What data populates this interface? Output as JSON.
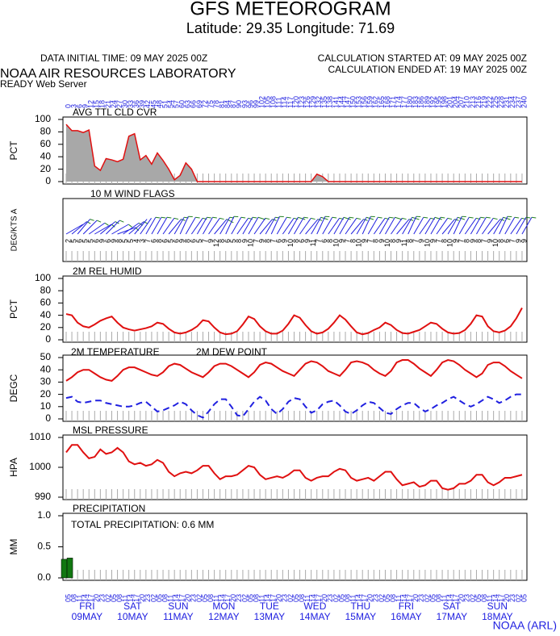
{
  "header": {
    "title": "GFS METEOROGRAM",
    "subtitle": "Latitude: 29.35 Longitude:  71.69",
    "data_initial": "DATA INITIAL TIME: 09 MAY 2025 00Z",
    "calc_started": "CALCULATION STARTED AT: 09 MAY 2025 00Z",
    "calc_ended": "CALCULATION ENDED AT: 19 MAY 2025 00Z",
    "org": "NOAA AIR RESOURCES LABORATORY",
    "server": "READY Web Server"
  },
  "footer": "NOAA (ARL)",
  "time": {
    "hours": [
      0,
      3,
      6,
      9,
      12,
      15,
      18,
      21,
      24,
      27,
      30,
      33,
      36,
      39,
      42,
      45,
      48,
      51,
      54,
      57,
      60,
      63,
      66,
      69,
      72,
      75,
      78,
      81,
      84,
      87,
      90,
      93,
      96,
      99,
      102,
      105,
      108,
      111,
      114,
      117,
      120,
      123,
      126,
      129,
      132,
      135,
      138,
      141,
      144,
      147,
      150,
      153,
      156,
      159,
      162,
      165,
      168,
      171,
      174,
      177,
      180,
      183,
      186,
      189,
      192,
      195,
      198,
      201,
      204,
      207,
      210,
      213,
      216,
      219,
      222,
      225,
      228,
      231,
      234,
      237,
      240
    ],
    "local_labels": [
      "05",
      "08",
      "11",
      "14",
      "17",
      "20",
      "23",
      "02",
      "05",
      "08",
      "11",
      "14",
      "17",
      "20",
      "23",
      "02",
      "05",
      "08",
      "11",
      "14",
      "17",
      "20",
      "23",
      "02",
      "05",
      "08",
      "11",
      "14",
      "17",
      "20",
      "23",
      "02",
      "05",
      "08",
      "11",
      "14",
      "17",
      "20",
      "23",
      "02",
      "05",
      "08",
      "11",
      "14",
      "17",
      "20",
      "23",
      "02",
      "05",
      "08",
      "11",
      "14",
      "17",
      "20",
      "23",
      "02",
      "05",
      "08",
      "11",
      "14",
      "17",
      "20",
      "23",
      "02",
      "05",
      "08",
      "11",
      "14",
      "17",
      "20",
      "23",
      "02",
      "05",
      "08",
      "11",
      "14",
      "17",
      "20",
      "23",
      "02",
      "05"
    ],
    "days": [
      {
        "name": "FRI",
        "date": "09MAY"
      },
      {
        "name": "SAT",
        "date": "10MAY"
      },
      {
        "name": "SUN",
        "date": "11MAY"
      },
      {
        "name": "MON",
        "date": "12MAY"
      },
      {
        "name": "TUE",
        "date": "13MAY"
      },
      {
        "name": "WED",
        "date": "14MAY"
      },
      {
        "name": "THU",
        "date": "15MAY"
      },
      {
        "name": "FRI",
        "date": "16MAY"
      },
      {
        "name": "SAT",
        "date": "17MAY"
      },
      {
        "name": "SUN",
        "date": "18MAY"
      }
    ]
  },
  "chart_data": [
    {
      "type": "area",
      "title": "AVG TTL CLD CVR",
      "ylabel": "PCT",
      "ylim": [
        0,
        100
      ],
      "yticks": [
        0,
        20,
        40,
        60,
        80,
        100
      ],
      "series": [
        {
          "color": "#e01010",
          "fill": "#a8a8a8",
          "values": [
            92,
            82,
            82,
            79,
            83,
            25,
            18,
            37,
            35,
            32,
            36,
            73,
            77,
            35,
            42,
            28,
            46,
            34,
            20,
            3,
            10,
            30,
            20,
            0,
            0,
            0,
            0,
            0,
            0,
            0,
            0,
            0,
            0,
            0,
            0,
            0,
            0,
            0,
            0,
            0,
            0,
            0,
            0,
            0,
            12,
            8,
            0,
            0,
            0,
            0,
            0,
            0,
            0,
            0,
            0,
            0,
            0,
            0,
            0,
            0,
            0,
            0,
            0,
            0,
            0,
            0,
            0,
            0,
            0,
            0,
            0,
            0,
            0,
            0,
            0,
            0,
            0,
            0,
            0,
            0,
            0
          ]
        }
      ]
    },
    {
      "type": "barbs",
      "title": "10 M  WIND FLAGS",
      "ylabel": "DEG/KTS A",
      "staff_color": "#2020e0",
      "barb_color": "#208020",
      "speed": [
        2,
        5,
        6,
        5,
        5,
        6,
        9,
        6,
        9,
        8,
        5,
        5,
        4,
        3,
        7,
        6,
        8,
        6,
        5,
        6,
        9,
        8,
        6,
        5,
        7,
        9,
        12,
        8,
        6,
        5,
        8,
        9,
        10,
        7,
        9,
        8,
        7,
        6,
        9,
        10,
        8,
        6,
        9,
        11,
        7,
        6,
        8,
        10,
        9,
        7,
        8,
        10,
        9,
        7,
        8,
        9,
        10,
        8,
        9,
        11,
        8,
        7,
        9,
        10,
        9,
        7,
        8,
        10,
        9,
        7,
        8,
        9,
        8,
        7,
        9,
        10,
        8,
        6,
        7,
        9,
        9
      ],
      "direction": [
        60,
        50,
        40,
        45,
        55,
        60,
        50,
        45,
        60,
        70,
        55,
        50,
        40,
        35,
        30,
        30,
        30,
        35,
        40,
        30,
        25,
        30,
        35,
        30,
        30,
        35,
        40,
        30,
        25,
        30,
        35,
        30,
        30,
        35,
        40,
        30,
        25,
        30,
        35,
        30,
        30,
        35,
        40,
        30,
        25,
        30,
        35,
        30,
        30,
        35,
        40,
        30,
        25,
        30,
        35,
        30,
        30,
        35,
        40,
        30,
        25,
        30,
        35,
        30,
        30,
        35,
        40,
        30,
        25,
        30,
        35,
        30,
        30,
        35,
        40,
        30,
        25,
        30,
        35,
        30,
        30
      ]
    },
    {
      "type": "line",
      "title": "2M REL HUMID",
      "ylabel": "PCT",
      "ylim": [
        0,
        100
      ],
      "yticks": [
        0,
        20,
        40,
        60,
        80,
        100
      ],
      "series": [
        {
          "color": "#e01010",
          "values": [
            42,
            40,
            28,
            22,
            20,
            25,
            31,
            35,
            38,
            28,
            20,
            17,
            15,
            17,
            19,
            22,
            28,
            26,
            18,
            12,
            10,
            12,
            16,
            22,
            32,
            30,
            20,
            12,
            9,
            10,
            14,
            25,
            38,
            34,
            22,
            14,
            10,
            10,
            15,
            26,
            40,
            36,
            24,
            14,
            10,
            12,
            18,
            28,
            40,
            33,
            22,
            12,
            9,
            11,
            16,
            20,
            28,
            24,
            16,
            11,
            10,
            13,
            16,
            22,
            28,
            26,
            18,
            12,
            10,
            11,
            16,
            26,
            40,
            38,
            22,
            14,
            12,
            15,
            22,
            35,
            52
          ]
        }
      ]
    },
    {
      "type": "line",
      "ylabel": "DEGC",
      "ylim": [
        0,
        50
      ],
      "yticks": [
        0,
        10,
        20,
        30,
        40,
        50
      ],
      "series": [
        {
          "name": "2M TEMPERATURE",
          "color": "#e01010",
          "values": [
            31,
            34,
            38,
            40,
            40,
            37,
            34,
            32,
            31,
            35,
            40,
            42,
            42,
            40,
            38,
            36,
            35,
            38,
            43,
            45,
            44,
            41,
            38,
            36,
            34,
            38,
            43,
            45,
            45,
            43,
            40,
            37,
            34,
            38,
            44,
            46,
            45,
            42,
            39,
            37,
            35,
            40,
            45,
            47,
            46,
            43,
            39,
            37,
            35,
            40,
            46,
            47,
            46,
            44,
            40,
            37,
            35,
            39,
            46,
            48,
            48,
            45,
            41,
            38,
            35,
            40,
            46,
            48,
            47,
            44,
            40,
            37,
            34,
            37,
            44,
            46,
            46,
            43,
            39,
            36,
            33
          ]
        },
        {
          "name": "2M  DEW POINT",
          "color": "#2020e0",
          "dash": true,
          "values": [
            17,
            18,
            14,
            13,
            14,
            15,
            15,
            13,
            12,
            11,
            10,
            10,
            11,
            13,
            14,
            10,
            6,
            7,
            9,
            11,
            14,
            12,
            7,
            3,
            1,
            6,
            12,
            16,
            16,
            10,
            3,
            2,
            8,
            14,
            18,
            15,
            8,
            4,
            8,
            14,
            17,
            16,
            10,
            5,
            7,
            12,
            14,
            15,
            11,
            6,
            4,
            7,
            11,
            14,
            13,
            9,
            5,
            4,
            8,
            11,
            13,
            13,
            9,
            6,
            8,
            11,
            13,
            16,
            18,
            15,
            12,
            10,
            12,
            15,
            18,
            16,
            13,
            15,
            18,
            20,
            20
          ]
        }
      ]
    },
    {
      "type": "line",
      "title": "MSL PRESSURE",
      "ylabel": "HPA",
      "ylim": [
        990,
        1010
      ],
      "yticks": [
        990,
        1000,
        1010
      ],
      "series": [
        {
          "color": "#e01010",
          "values": [
            1005,
            1007.5,
            1007.5,
            1005,
            1003,
            1003.5,
            1006,
            1004.5,
            1005,
            1006.5,
            1005,
            1002,
            1001,
            1001.5,
            1000.5,
            1001,
            1002.5,
            1001.5,
            998.5,
            997,
            998,
            998.5,
            998,
            999,
            1000.5,
            1000.5,
            998,
            996,
            997,
            997,
            997.5,
            999,
            1000.5,
            1000,
            997.5,
            996,
            996.5,
            997,
            996.5,
            997.5,
            999,
            999,
            996.5,
            995.5,
            996.5,
            997,
            997,
            998.5,
            999.5,
            999,
            996.5,
            995.5,
            996,
            996.5,
            995.5,
            997,
            998.5,
            998.5,
            996,
            994,
            994.5,
            995,
            993.5,
            994,
            995.5,
            995.5,
            993,
            992.5,
            993,
            994.5,
            994.5,
            995.5,
            997.5,
            997.5,
            995,
            994,
            995,
            996.5,
            996.5,
            997,
            997.5
          ]
        }
      ]
    },
    {
      "type": "bar",
      "title": "PRECIPITATION",
      "ylabel": "MM",
      "annotation": "TOTAL PRECIPITATION:   0.6 MM",
      "ylim": [
        0,
        1
      ],
      "yticks": [
        {
          "value": 0,
          "label": "0.0"
        },
        {
          "value": 0.5,
          "label": "0.5"
        },
        {
          "value": 1,
          "label": "1.0"
        }
      ],
      "color": "#117711",
      "x": [
        0,
        3
      ],
      "values": [
        0.3,
        0.32
      ]
    }
  ]
}
